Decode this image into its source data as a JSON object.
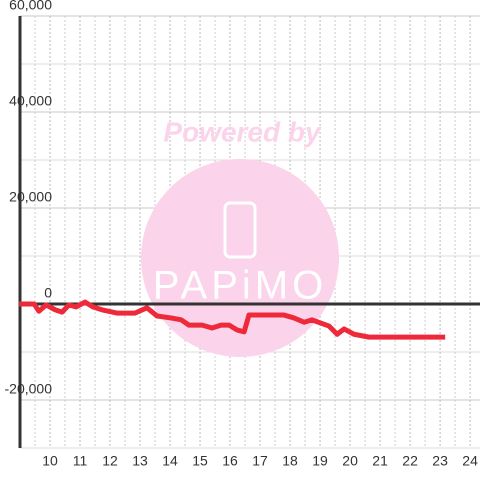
{
  "chart_data": {
    "type": "line",
    "watermark_top": "Powered by",
    "watermark_logo": "PAPiMO",
    "x": [
      8.97,
      9.47,
      9.63,
      9.87,
      10.17,
      10.4,
      10.63,
      10.87,
      11.17,
      11.43,
      11.73,
      12.23,
      12.83,
      13.23,
      13.57,
      14.03,
      14.37,
      14.63,
      15.07,
      15.4,
      15.7,
      15.97,
      16.23,
      16.47,
      16.63,
      17.8,
      18.13,
      18.47,
      18.73,
      19.3,
      19.57,
      19.8,
      20.13,
      20.63,
      23.17
    ],
    "series": [
      {
        "color": "#ee2a3a",
        "values": [
          0,
          0,
          -1500,
          -200,
          -1200,
          -1700,
          -200,
          -600,
          400,
          -600,
          -1200,
          -1900,
          -1900,
          -800,
          -2500,
          -2900,
          -3300,
          -4400,
          -4400,
          -5000,
          -4400,
          -4400,
          -5400,
          -5800,
          -2300,
          -2300,
          -2900,
          -3800,
          -3300,
          -4600,
          -6300,
          -5200,
          -6300,
          -6900,
          -6900
        ]
      }
    ],
    "xlim": [
      9,
      24.33
    ],
    "xticks": [
      10,
      11,
      12,
      13,
      14,
      15,
      16,
      17,
      18,
      19,
      20,
      21,
      22,
      23,
      24
    ],
    "ylim": [
      -30000,
      60000
    ],
    "yticks": [
      {
        "value": -20000,
        "label": "-20,000"
      },
      0,
      {
        "value": 20000,
        "label": "20,000"
      },
      {
        "value": 40000,
        "label": "40,000"
      },
      {
        "value": 60000,
        "label": "60,000"
      }
    ],
    "grid": true
  }
}
